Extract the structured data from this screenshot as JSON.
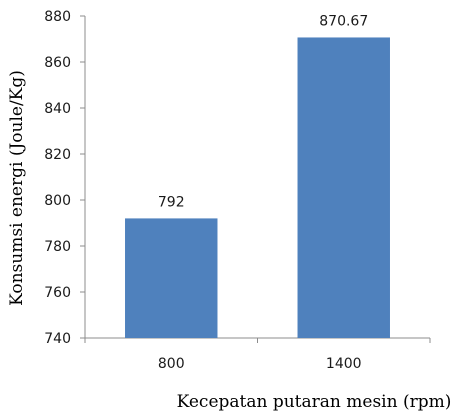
{
  "chart_data": {
    "type": "bar",
    "categories": [
      "800",
      "1400"
    ],
    "values": [
      792,
      870.67
    ],
    "data_labels": [
      "792",
      "870.67"
    ],
    "title": "",
    "xlabel": "Kecepatan putaran mesin (rpm)",
    "ylabel": "Konsumsi energi (Joule/Kg)",
    "ylim": [
      740,
      880
    ],
    "yticks": [
      740,
      760,
      780,
      800,
      820,
      840,
      860,
      880
    ],
    "grid": false,
    "legend": "none",
    "bar_color": "#4f81bd",
    "axis_color": "#8c8c8c"
  }
}
